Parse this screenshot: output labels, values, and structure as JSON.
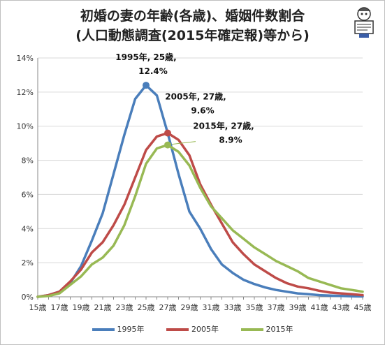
{
  "title_line1": "初婚の妻の年齢(各歳)、婚姻件数割合",
  "title_line2": "(人口動態調査(2015年確定報)等から)",
  "legend_label_1995": "1995年",
  "legend_label_2005": "2005年",
  "legend_label_2015": "2015年",
  "mascot_icon": "newspaper-reader-mascot-icon",
  "chart_data": {
    "type": "line",
    "x": [
      15,
      16,
      17,
      18,
      19,
      20,
      21,
      22,
      23,
      24,
      25,
      26,
      27,
      28,
      29,
      30,
      31,
      32,
      33,
      34,
      35,
      36,
      37,
      38,
      39,
      40,
      41,
      42,
      43,
      44,
      45
    ],
    "x_tick_labels": [
      "15歳",
      "17歳",
      "19歳",
      "21歳",
      "23歳",
      "25歳",
      "27歳",
      "29歳",
      "31歳",
      "33歳",
      "35歳",
      "37歳",
      "39歳",
      "41歳",
      "43歳",
      "45歳"
    ],
    "y_tick_labels": [
      "0%",
      "2%",
      "4%",
      "6%",
      "8%",
      "10%",
      "12%",
      "14%"
    ],
    "ylim": [
      0,
      14
    ],
    "grid": "horizontal",
    "legend_position": "bottom",
    "series": [
      {
        "name": "1995年",
        "color": "#4a7ebb",
        "values": [
          0.0,
          0.1,
          0.3,
          0.8,
          1.8,
          3.3,
          4.9,
          7.2,
          9.5,
          11.6,
          12.4,
          11.8,
          9.6,
          7.2,
          5.0,
          4.0,
          2.8,
          1.9,
          1.4,
          1.0,
          0.75,
          0.55,
          0.4,
          0.3,
          0.2,
          0.15,
          0.1,
          0.07,
          0.05,
          0.03,
          0.02
        ]
      },
      {
        "name": "2005年",
        "color": "#be4b48",
        "values": [
          0.0,
          0.1,
          0.3,
          0.9,
          1.6,
          2.6,
          3.2,
          4.2,
          5.4,
          7.0,
          8.6,
          9.4,
          9.6,
          9.2,
          8.3,
          6.6,
          5.4,
          4.3,
          3.2,
          2.5,
          1.9,
          1.5,
          1.1,
          0.8,
          0.6,
          0.5,
          0.35,
          0.25,
          0.2,
          0.15,
          0.1
        ]
      },
      {
        "name": "2015年",
        "color": "#98b954",
        "values": [
          0.0,
          0.05,
          0.2,
          0.7,
          1.2,
          1.9,
          2.3,
          3.0,
          4.2,
          5.9,
          7.8,
          8.7,
          8.9,
          8.5,
          7.7,
          6.4,
          5.3,
          4.6,
          3.9,
          3.4,
          2.9,
          2.5,
          2.1,
          1.8,
          1.5,
          1.1,
          0.9,
          0.7,
          0.5,
          0.4,
          0.3
        ]
      }
    ],
    "annotations": [
      {
        "series": "1995年",
        "x": 25,
        "y": 12.4,
        "line1": "1995年, 25歳,",
        "line2": "12.4%"
      },
      {
        "series": "2005年",
        "x": 27,
        "y": 9.6,
        "line1": "2005年, 27歳,",
        "line2": "9.6%"
      },
      {
        "series": "2015年",
        "x": 27,
        "y": 8.9,
        "line1": "2015年, 27歳,",
        "line2": "8.9%"
      }
    ]
  }
}
